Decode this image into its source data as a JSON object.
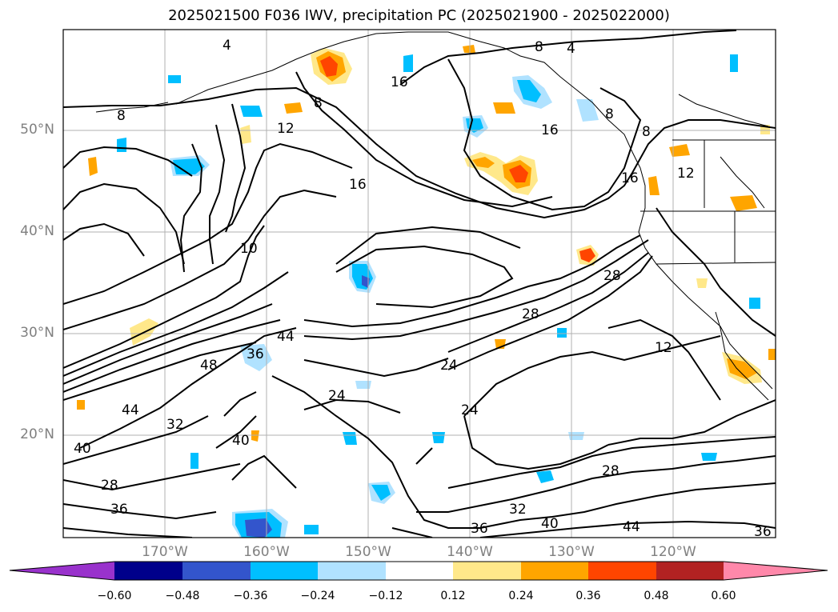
{
  "title": "2025021500 F036 IWV, precipitation PC (2025021900 - 2025022000)",
  "lat_labels": [
    "50°N",
    "40°N",
    "30°N",
    "20°N"
  ],
  "lon_labels": [
    "170°W",
    "160°W",
    "150°W",
    "140°W",
    "130°W",
    "120°W"
  ],
  "contour_labels": [
    "4",
    "8",
    "8",
    "12",
    "16",
    "16",
    "16",
    "24",
    "24",
    "28",
    "28",
    "32",
    "36",
    "40",
    "44",
    "48",
    "36",
    "44",
    "40",
    "28",
    "32",
    "36",
    "40",
    "44",
    "36",
    "8",
    "12",
    "8",
    "16",
    "12",
    "24",
    "10",
    "4",
    "8",
    "28"
  ],
  "colorbar": {
    "ticks": [
      "−0.60",
      "−0.48",
      "−0.36",
      "−0.24",
      "−0.12",
      "0.12",
      "0.24",
      "0.36",
      "0.48",
      "0.60"
    ],
    "colors": [
      "#9932cc",
      "#00008b",
      "#3355cc",
      "#00bfff",
      "#b0e2ff",
      "#ffffff",
      "#ffe88a",
      "#ffa500",
      "#ff4500",
      "#b22222",
      "#ff88aa"
    ]
  },
  "colors": {
    "contour": "#000000",
    "grid": "#b0b0b0",
    "coast": "#000000"
  }
}
